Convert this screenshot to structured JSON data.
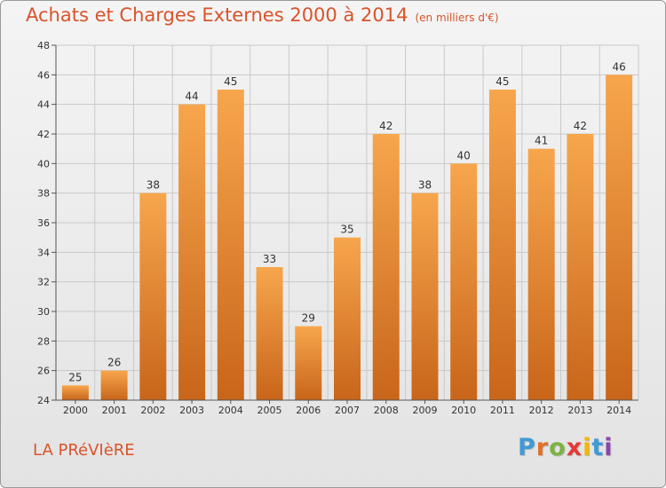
{
  "header": {
    "title": "Achats et Charges Externes 2000 à 2014",
    "subtitle": "(en milliers d'€)"
  },
  "footer": {
    "commune": "LA PRéVIèRE",
    "logo": "Proxiti",
    "logo_colors": [
      "#3f9ad6",
      "#e2702a",
      "#7cb342",
      "#e53935",
      "#f2b705",
      "#3f9ad6",
      "#8e44ad"
    ]
  },
  "colors": {
    "bar_top": "#f7a64d",
    "bar_bottom": "#c8651a",
    "accent_text": "#d9542b",
    "grid": "#c9c9c9"
  },
  "chart_data": {
    "type": "bar",
    "title": "Achats et Charges Externes 2000 à 2014",
    "subtitle": "(en milliers d'€)",
    "xlabel": "",
    "ylabel": "",
    "categories": [
      "2000",
      "2001",
      "2002",
      "2003",
      "2004",
      "2005",
      "2006",
      "2007",
      "2008",
      "2009",
      "2010",
      "2011",
      "2012",
      "2013",
      "2014"
    ],
    "values": [
      25,
      26,
      38,
      44,
      45,
      33,
      29,
      35,
      42,
      38,
      40,
      45,
      41,
      42,
      46
    ],
    "ylim": [
      24,
      48
    ],
    "yticks": [
      24,
      26,
      28,
      30,
      32,
      34,
      36,
      38,
      40,
      42,
      44,
      46,
      48
    ],
    "grid": true
  }
}
